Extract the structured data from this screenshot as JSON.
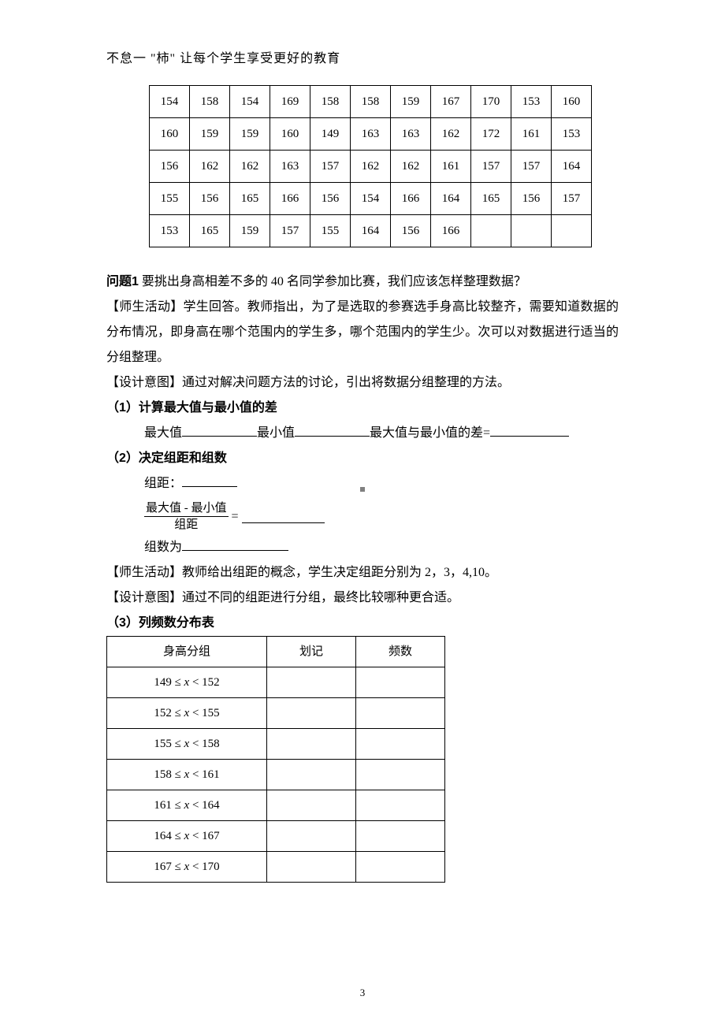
{
  "header": "不怠一 \"柿\" 让每个学生享受更好的教育",
  "table_data": [
    [
      154,
      158,
      154,
      169,
      158,
      158,
      159,
      167,
      170,
      153,
      160
    ],
    [
      160,
      159,
      159,
      160,
      149,
      163,
      163,
      162,
      172,
      161,
      153
    ],
    [
      156,
      162,
      162,
      163,
      157,
      162,
      162,
      161,
      157,
      157,
      164
    ],
    [
      155,
      156,
      165,
      166,
      156,
      154,
      166,
      164,
      165,
      156,
      157
    ],
    [
      153,
      165,
      159,
      157,
      155,
      164,
      156,
      166,
      "",
      "",
      ""
    ]
  ],
  "q1_label": "问题1",
  "q1_text": "  要挑出身高相差不多的 40 名同学参加比赛，我们应该怎样整理数据？",
  "activity1_label": "【师生活动】",
  "activity1_text": "学生回答。教师指出，为了是选取的参赛选手身高比较整齐，需要知道数据的分布情况，即身高在哪个范围内的学生多，哪个范围内的学生少。次可以对数据进行适当的分组整理。",
  "design1_label": "【设计意图】",
  "design1_text": "通过对解决问题方法的讨论，引出将数据分组整理的方法。",
  "step1": "（1）计算最大值与最小值的差",
  "step1_max_label": "最大值",
  "step1_min_label": "最小值",
  "step1_diff_label": "最大值与最小值的差",
  "step2": "（2）决定组距和组数",
  "step2_juli_label": "组距：",
  "formula_top": "最大值 - 最小值",
  "formula_bot": "组距",
  "step2_count_label": "组数为",
  "activity2_label": "【师生活动】",
  "activity2_text": "教师给出组距的概念，学生决定组距分别为 2，3，4,10。",
  "design2_label": "【设计意图】",
  "design2_text": "通过不同的组距进行分组，最终比较哪种更合适。",
  "step3": "（3）列频数分布表",
  "freq_headers": [
    "身高分组",
    "划记",
    "频数"
  ],
  "freq_ranges": [
    {
      "lo": 149,
      "hi": 152
    },
    {
      "lo": 152,
      "hi": 155
    },
    {
      "lo": 155,
      "hi": 158
    },
    {
      "lo": 158,
      "hi": 161
    },
    {
      "lo": 161,
      "hi": 164
    },
    {
      "lo": 164,
      "hi": 167
    },
    {
      "lo": 167,
      "hi": 170
    }
  ],
  "page_number": "3"
}
